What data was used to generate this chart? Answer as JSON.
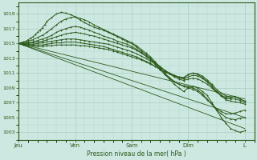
{
  "bg_color": "#cce8e0",
  "plot_bg_color": "#cce8e0",
  "line_color": "#2d5a1b",
  "grid_color_major": "#a8ccc4",
  "grid_color_minor": "#b8d8d0",
  "tick_color": "#2d5a1b",
  "xlabel": "Pression niveau de la mer( hPa )",
  "ylim": [
    1002.0,
    1020.5
  ],
  "yticks": [
    1003,
    1005,
    1007,
    1009,
    1011,
    1013,
    1015,
    1017,
    1019
  ],
  "x_day_labels": [
    "Jeu",
    "Ven",
    "Sam",
    "Dim",
    "L"
  ],
  "x_day_positions": [
    0,
    24,
    48,
    72,
    96
  ],
  "xlim": [
    0,
    100
  ],
  "lines": [
    {
      "x": [
        0,
        1,
        2,
        3,
        4,
        5,
        6,
        7,
        8,
        9,
        10,
        11,
        12,
        14,
        16,
        18,
        20,
        22,
        24,
        26,
        28,
        30,
        32,
        34,
        36,
        38,
        40,
        42,
        44,
        46,
        48,
        50,
        52,
        54,
        56,
        58,
        60,
        62,
        64,
        66,
        68,
        70,
        72,
        74,
        76,
        78,
        80,
        82,
        84,
        86,
        88,
        90,
        92,
        94,
        96
      ],
      "y": [
        1015.0,
        1015.1,
        1015.2,
        1015.3,
        1015.5,
        1015.7,
        1015.9,
        1016.2,
        1016.5,
        1016.8,
        1017.1,
        1017.5,
        1018.0,
        1018.5,
        1019.0,
        1019.2,
        1019.1,
        1018.9,
        1018.6,
        1018.2,
        1017.8,
        1017.5,
        1017.2,
        1017.0,
        1016.8,
        1016.5,
        1016.2,
        1015.9,
        1015.6,
        1015.2,
        1015.0,
        1014.5,
        1014.0,
        1013.5,
        1013.0,
        1012.2,
        1011.5,
        1010.8,
        1010.2,
        1009.5,
        1009.0,
        1008.5,
        1009.0,
        1009.2,
        1009.0,
        1008.5,
        1008.0,
        1007.0,
        1006.0,
        1005.0,
        1004.2,
        1003.5,
        1003.2,
        1003.0,
        1003.2
      ]
    },
    {
      "x": [
        0,
        2,
        4,
        6,
        8,
        10,
        12,
        14,
        16,
        18,
        20,
        22,
        24,
        26,
        28,
        30,
        32,
        34,
        36,
        38,
        40,
        42,
        44,
        46,
        48,
        50,
        52,
        54,
        56,
        58,
        60,
        62,
        64,
        66,
        68,
        70,
        72,
        74,
        76,
        78,
        80,
        82,
        84,
        86,
        88,
        90,
        92,
        94,
        96
      ],
      "y": [
        1015.0,
        1015.1,
        1015.3,
        1015.5,
        1015.8,
        1016.1,
        1016.5,
        1017.0,
        1017.5,
        1018.0,
        1018.3,
        1018.5,
        1018.6,
        1018.4,
        1018.2,
        1017.9,
        1017.5,
        1017.2,
        1016.9,
        1016.6,
        1016.3,
        1016.0,
        1015.7,
        1015.4,
        1015.1,
        1014.7,
        1014.2,
        1013.7,
        1013.2,
        1012.5,
        1011.8,
        1011.0,
        1010.3,
        1009.8,
        1009.5,
        1009.3,
        1009.2,
        1009.0,
        1008.7,
        1008.2,
        1007.5,
        1006.8,
        1006.0,
        1005.5,
        1005.0,
        1004.8,
        1004.7,
        1004.9,
        1005.0
      ]
    },
    {
      "x": [
        0,
        2,
        4,
        6,
        8,
        10,
        12,
        14,
        16,
        18,
        20,
        22,
        24,
        26,
        28,
        30,
        32,
        34,
        36,
        38,
        40,
        42,
        44,
        46,
        48,
        50,
        52,
        54,
        56,
        58,
        60,
        62,
        64,
        66,
        68,
        70,
        72,
        74,
        76,
        78,
        80,
        82,
        84,
        86,
        88,
        90,
        92,
        94,
        96
      ],
      "y": [
        1015.0,
        1015.0,
        1015.1,
        1015.2,
        1015.4,
        1015.6,
        1015.8,
        1016.1,
        1016.5,
        1016.8,
        1017.0,
        1017.2,
        1017.3,
        1017.2,
        1017.0,
        1016.8,
        1016.5,
        1016.3,
        1016.0,
        1015.8,
        1015.6,
        1015.3,
        1015.1,
        1014.9,
        1014.6,
        1014.2,
        1013.8,
        1013.3,
        1012.8,
        1012.2,
        1011.6,
        1011.0,
        1010.4,
        1009.9,
        1009.5,
        1009.2,
        1009.0,
        1008.8,
        1008.5,
        1008.0,
        1007.4,
        1006.8,
        1006.2,
        1005.8,
        1005.5,
        1005.5,
        1005.6,
        1005.8,
        1006.0
      ]
    },
    {
      "x": [
        0,
        2,
        4,
        6,
        8,
        10,
        12,
        14,
        16,
        18,
        20,
        22,
        24,
        26,
        28,
        30,
        32,
        34,
        36,
        38,
        40,
        42,
        44,
        46,
        48,
        50,
        52,
        54,
        56,
        58,
        60,
        62,
        64,
        66,
        68,
        70,
        72,
        74,
        76,
        78,
        80,
        82,
        84,
        86,
        88,
        90,
        92,
        94,
        96
      ],
      "y": [
        1015.0,
        1015.0,
        1015.0,
        1015.1,
        1015.2,
        1015.3,
        1015.5,
        1015.7,
        1015.9,
        1016.1,
        1016.3,
        1016.4,
        1016.5,
        1016.4,
        1016.3,
        1016.1,
        1016.0,
        1015.8,
        1015.6,
        1015.4,
        1015.2,
        1015.0,
        1014.8,
        1014.6,
        1014.4,
        1014.1,
        1013.7,
        1013.3,
        1012.9,
        1012.4,
        1011.9,
        1011.4,
        1010.9,
        1010.5,
        1010.2,
        1010.0,
        1010.2,
        1010.3,
        1010.2,
        1009.9,
        1009.5,
        1009.0,
        1008.4,
        1008.0,
        1007.7,
        1007.7,
        1007.8,
        1007.5,
        1007.2
      ]
    },
    {
      "x": [
        0,
        2,
        4,
        6,
        8,
        10,
        12,
        14,
        16,
        18,
        20,
        22,
        24,
        26,
        28,
        30,
        32,
        34,
        36,
        38,
        40,
        42,
        44,
        46,
        48,
        50,
        52,
        54,
        56,
        58,
        60,
        62,
        64,
        66,
        68,
        70,
        72,
        74,
        76,
        78,
        80,
        82,
        84,
        86,
        88,
        90,
        92,
        94,
        96
      ],
      "y": [
        1015.0,
        1014.9,
        1014.9,
        1014.9,
        1015.0,
        1015.1,
        1015.2,
        1015.3,
        1015.4,
        1015.5,
        1015.6,
        1015.6,
        1015.6,
        1015.5,
        1015.4,
        1015.3,
        1015.2,
        1015.1,
        1015.0,
        1014.9,
        1014.7,
        1014.5,
        1014.3,
        1014.1,
        1013.9,
        1013.6,
        1013.3,
        1013.0,
        1012.6,
        1012.2,
        1011.8,
        1011.4,
        1011.0,
        1010.7,
        1010.4,
        1010.2,
        1010.5,
        1010.7,
        1010.6,
        1010.3,
        1009.8,
        1009.2,
        1008.5,
        1008.0,
        1007.6,
        1007.5,
        1007.5,
        1007.3,
        1007.0
      ]
    },
    {
      "x": [
        0,
        2,
        4,
        6,
        8,
        10,
        12,
        14,
        16,
        18,
        20,
        22,
        24,
        26,
        28,
        30,
        32,
        34,
        36,
        38,
        40,
        42,
        44,
        46,
        48,
        50,
        52,
        54,
        56,
        58,
        60,
        62,
        64,
        66,
        68,
        70,
        72,
        74,
        76,
        78,
        80,
        82,
        84,
        86,
        88,
        90,
        92,
        94,
        96
      ],
      "y": [
        1015.0,
        1014.9,
        1014.8,
        1014.8,
        1014.8,
        1014.8,
        1014.9,
        1015.0,
        1015.1,
        1015.1,
        1015.2,
        1015.2,
        1015.2,
        1015.1,
        1015.0,
        1014.9,
        1014.8,
        1014.7,
        1014.6,
        1014.4,
        1014.2,
        1014.0,
        1013.8,
        1013.6,
        1013.4,
        1013.2,
        1012.9,
        1012.6,
        1012.3,
        1011.9,
        1011.5,
        1011.2,
        1010.9,
        1010.6,
        1010.4,
        1010.3,
        1010.8,
        1011.0,
        1010.9,
        1010.6,
        1010.1,
        1009.5,
        1008.8,
        1008.3,
        1007.9,
        1007.8,
        1007.8,
        1007.5,
        1007.2
      ]
    },
    {
      "x": [
        0,
        2,
        4,
        6,
        8,
        10,
        12,
        14,
        16,
        18,
        20,
        22,
        24,
        26,
        28,
        30,
        32,
        34,
        36,
        38,
        40,
        42,
        44,
        46,
        48,
        50,
        52,
        54,
        56,
        58,
        60,
        62,
        64,
        66,
        68,
        70,
        72,
        74,
        76,
        78,
        80,
        82,
        84,
        86,
        88,
        90,
        92,
        94,
        96
      ],
      "y": [
        1015.0,
        1014.8,
        1014.7,
        1014.7,
        1014.6,
        1014.6,
        1014.7,
        1014.7,
        1014.8,
        1014.8,
        1014.8,
        1014.8,
        1014.8,
        1014.7,
        1014.7,
        1014.6,
        1014.5,
        1014.4,
        1014.3,
        1014.2,
        1014.0,
        1013.8,
        1013.6,
        1013.4,
        1013.2,
        1013.0,
        1012.8,
        1012.5,
        1012.2,
        1011.9,
        1011.5,
        1011.2,
        1010.9,
        1010.7,
        1010.5,
        1010.4,
        1010.8,
        1011.0,
        1010.8,
        1010.4,
        1009.9,
        1009.3,
        1008.5,
        1007.9,
        1007.4,
        1007.2,
        1007.1,
        1007.0,
        1006.8
      ]
    },
    {
      "x": [
        0,
        96
      ],
      "y": [
        1015.0,
        1007.5
      ],
      "straight": true
    },
    {
      "x": [
        0,
        96
      ],
      "y": [
        1015.0,
        1005.0
      ],
      "straight": true
    },
    {
      "x": [
        0,
        96
      ],
      "y": [
        1015.0,
        1003.5
      ],
      "straight": true
    }
  ]
}
